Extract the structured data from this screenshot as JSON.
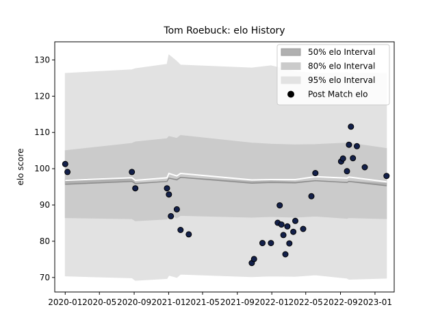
{
  "chart_data": {
    "type": "scatter",
    "title": "Tom Roebuck: elo History",
    "xlabel": "",
    "ylabel": "elo score",
    "xlim": [
      "2019-11-25",
      "2023-03-10"
    ],
    "ylim": [
      66,
      135
    ],
    "x_ticks": [
      {
        "date": "2020-01-01",
        "label": "2020-01"
      },
      {
        "date": "2020-05-01",
        "label": "2020-05"
      },
      {
        "date": "2020-09-01",
        "label": "2020-09"
      },
      {
        "date": "2021-01-01",
        "label": "2021-01"
      },
      {
        "date": "2021-05-01",
        "label": "2021-05"
      },
      {
        "date": "2021-09-01",
        "label": "2021-09"
      },
      {
        "date": "2022-01-01",
        "label": "2022-01"
      },
      {
        "date": "2022-05-01",
        "label": "2022-05"
      },
      {
        "date": "2022-09-01",
        "label": "2022-09"
      },
      {
        "date": "2023-01-01",
        "label": "2023-01"
      }
    ],
    "y_ticks": [
      70,
      80,
      90,
      100,
      110,
      120,
      130
    ],
    "legend": {
      "placement": "upper right",
      "entries": [
        {
          "label": "50% elo Interval",
          "color": "#b0b0b0"
        },
        {
          "label": "80% elo Interval",
          "color": "#cbcbcb"
        },
        {
          "label": "95% elo Interval",
          "color": "#e2e2e2"
        },
        {
          "label": "Post Match elo",
          "color": "#000000"
        }
      ]
    },
    "colors": {
      "point_fill": "#13204a",
      "point_edge": "#000000",
      "median_line": "#ffffff",
      "band_line": "#8c8c8c"
    },
    "points": [
      {
        "date": "2020-01-01",
        "elo": 101.3
      },
      {
        "date": "2020-01-09",
        "elo": 99.1
      },
      {
        "date": "2020-08-24",
        "elo": 99.1
      },
      {
        "date": "2020-09-05",
        "elo": 94.6
      },
      {
        "date": "2020-12-26",
        "elo": 94.6
      },
      {
        "date": "2021-01-02",
        "elo": 92.9
      },
      {
        "date": "2021-01-09",
        "elo": 86.9
      },
      {
        "date": "2021-01-30",
        "elo": 88.8
      },
      {
        "date": "2021-02-12",
        "elo": 83.1
      },
      {
        "date": "2021-03-13",
        "elo": 81.9
      },
      {
        "date": "2021-10-22",
        "elo": 74.0
      },
      {
        "date": "2021-10-30",
        "elo": 75.1
      },
      {
        "date": "2021-11-29",
        "elo": 79.5
      },
      {
        "date": "2021-12-29",
        "elo": 79.5
      },
      {
        "date": "2022-01-22",
        "elo": 85.1
      },
      {
        "date": "2022-01-29",
        "elo": 89.9
      },
      {
        "date": "2022-02-04",
        "elo": 84.6
      },
      {
        "date": "2022-02-11",
        "elo": 81.7
      },
      {
        "date": "2022-02-18",
        "elo": 76.4
      },
      {
        "date": "2022-02-25",
        "elo": 84.1
      },
      {
        "date": "2022-03-04",
        "elo": 79.4
      },
      {
        "date": "2022-03-18",
        "elo": 82.6
      },
      {
        "date": "2022-03-25",
        "elo": 85.6
      },
      {
        "date": "2022-04-22",
        "elo": 83.4
      },
      {
        "date": "2022-05-21",
        "elo": 92.4
      },
      {
        "date": "2022-06-04",
        "elo": 98.8
      },
      {
        "date": "2022-09-03",
        "elo": 102.0
      },
      {
        "date": "2022-09-10",
        "elo": 102.8
      },
      {
        "date": "2022-09-24",
        "elo": 99.3
      },
      {
        "date": "2022-10-01",
        "elo": 106.6
      },
      {
        "date": "2022-10-08",
        "elo": 111.6
      },
      {
        "date": "2022-10-15",
        "elo": 102.9
      },
      {
        "date": "2022-10-29",
        "elo": 106.2
      },
      {
        "date": "2022-11-26",
        "elo": 100.4
      },
      {
        "date": "2023-02-11",
        "elo": 98.0
      }
    ],
    "intervals": [
      {
        "date": "2020-01-01",
        "median": 96.8,
        "p50": [
          95.7,
          97.0
        ],
        "p80": [
          86.5,
          105.0
        ],
        "p95": [
          70.4,
          126.3
        ]
      },
      {
        "date": "2020-08-24",
        "median": 97.5,
        "p50": [
          96.5,
          97.5
        ],
        "p80": [
          86.2,
          107.0
        ],
        "p95": [
          69.9,
          127.3
        ]
      },
      {
        "date": "2020-09-05",
        "median": 96.8,
        "p50": [
          95.9,
          96.0
        ],
        "p80": [
          85.6,
          107.4
        ],
        "p95": [
          69.2,
          127.6
        ]
      },
      {
        "date": "2020-12-26",
        "median": 97.5,
        "p50": [
          96.5,
          96.5
        ],
        "p80": [
          86.1,
          108.3
        ],
        "p95": [
          69.7,
          128.8
        ]
      },
      {
        "date": "2021-01-02",
        "median": 98.7,
        "p50": [
          97.4,
          97.4
        ],
        "p80": [
          87.4,
          108.9
        ],
        "p95": [
          70.6,
          131.4
        ]
      },
      {
        "date": "2021-01-30",
        "median": 98.0,
        "p50": [
          96.9,
          97.1
        ],
        "p80": [
          86.4,
          108.4
        ],
        "p95": [
          70.0,
          129.6
        ]
      },
      {
        "date": "2021-02-12",
        "median": 98.7,
        "p50": [
          97.6,
          97.6
        ],
        "p80": [
          87.1,
          109.2
        ],
        "p95": [
          70.9,
          128.6
        ]
      },
      {
        "date": "2021-10-22",
        "median": 96.9,
        "p50": [
          96.0,
          96.5
        ],
        "p80": [
          86.6,
          107.1
        ],
        "p95": [
          70.2,
          127.8
        ]
      },
      {
        "date": "2021-12-29",
        "median": 97.0,
        "p50": [
          96.2,
          96.7
        ],
        "p80": [
          86.8,
          106.8
        ],
        "p95": [
          70.4,
          128.4
        ]
      },
      {
        "date": "2022-03-25",
        "median": 97.0,
        "p50": [
          96.1,
          96.4
        ],
        "p80": [
          86.6,
          106.6
        ],
        "p95": [
          70.3,
          126.8
        ]
      },
      {
        "date": "2022-06-04",
        "median": 97.8,
        "p50": [
          96.7,
          96.7
        ],
        "p80": [
          86.9,
          106.7
        ],
        "p95": [
          70.7,
          126.3
        ]
      },
      {
        "date": "2022-09-24",
        "median": 97.4,
        "p50": [
          96.2,
          96.3
        ],
        "p80": [
          86.3,
          107.1
        ],
        "p95": [
          69.8,
          126.5
        ]
      },
      {
        "date": "2022-10-01",
        "median": 97.7,
        "p50": [
          96.5,
          96.5
        ],
        "p80": [
          86.5,
          107.1
        ],
        "p95": [
          69.5,
          126.4
        ]
      },
      {
        "date": "2023-02-11",
        "median": 96.4,
        "p50": [
          95.3,
          96.0
        ],
        "p80": [
          86.2,
          105.6
        ],
        "p95": [
          69.8,
          126.3
        ]
      }
    ]
  }
}
